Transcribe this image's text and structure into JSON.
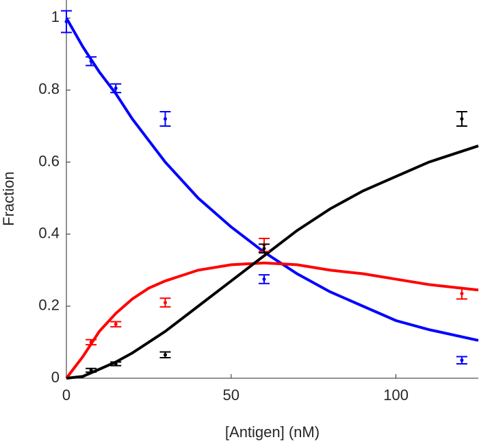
{
  "chart_data": {
    "type": "scatter",
    "xlabel": "[Antigen] (nM)",
    "ylabel": "Fraction",
    "xlim": [
      0,
      125
    ],
    "ylim": [
      0,
      1.05
    ],
    "xticks": [
      0,
      50,
      100
    ],
    "yticks": [
      0,
      0.2,
      0.4,
      0.6,
      0.8,
      1
    ],
    "x": [
      0,
      7.5,
      15,
      30,
      60,
      120
    ],
    "series": [
      {
        "color": "#0000ff",
        "values": [
          0.99,
          0.88,
          0.805,
          0.72,
          0.275,
          0.05
        ],
        "errors": [
          0.03,
          0.012,
          0.012,
          0.02,
          0.012,
          0.01
        ]
      },
      {
        "color": "#ff0000",
        "values": [
          null,
          0.1,
          0.15,
          0.21,
          0.37,
          0.235
        ],
        "errors": [
          null,
          0.007,
          0.007,
          0.012,
          0.018,
          0.015
        ]
      },
      {
        "color": "#000000",
        "values": [
          null,
          0.022,
          0.04,
          0.065,
          0.36,
          0.72
        ],
        "errors": [
          null,
          0.005,
          0.005,
          0.008,
          0.012,
          0.02
        ]
      }
    ],
    "fits": {
      "x": [
        0,
        5,
        10,
        15,
        20,
        25,
        30,
        40,
        50,
        60,
        70,
        80,
        90,
        100,
        110,
        125
      ],
      "series": [
        {
          "color": "#0000ff",
          "values": [
            1,
            0.92,
            0.85,
            0.79,
            0.72,
            0.66,
            0.6,
            0.5,
            0.42,
            0.35,
            0.29,
            0.24,
            0.2,
            0.16,
            0.135,
            0.105
          ]
        },
        {
          "color": "#ff0000",
          "values": [
            0,
            0.06,
            0.13,
            0.18,
            0.22,
            0.25,
            0.27,
            0.3,
            0.315,
            0.32,
            0.315,
            0.3,
            0.29,
            0.275,
            0.26,
            0.245
          ]
        },
        {
          "color": "#000000",
          "values": [
            0,
            0.005,
            0.025,
            0.045,
            0.07,
            0.1,
            0.13,
            0.2,
            0.27,
            0.34,
            0.41,
            0.47,
            0.52,
            0.56,
            0.6,
            0.645
          ]
        }
      ]
    }
  }
}
